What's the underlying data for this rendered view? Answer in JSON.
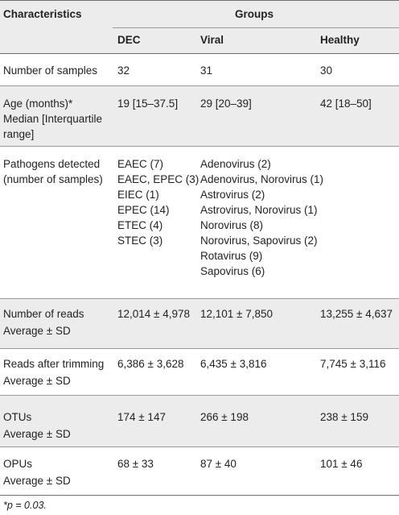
{
  "header": {
    "characteristics": "Characteristics",
    "groups": "Groups",
    "dec": "DEC",
    "viral": "Viral",
    "healthy": "Healthy"
  },
  "rows": {
    "samples": {
      "label": "Number of samples",
      "dec": "32",
      "viral": "31",
      "healthy": "30"
    },
    "age": {
      "label1": "Age (months)*",
      "label2": "Median [Interquartile",
      "label3": "range]",
      "dec": "19 [15–37.5]",
      "viral": "29 [20–39]",
      "healthy": "42 [18–50]"
    },
    "pathogens": {
      "label1": "Pathogens detected",
      "label2": "(number of samples)",
      "dec": [
        "EAEC (7)",
        "EAEC, EPEC (3)",
        "EIEC (1)",
        "EPEC (14)",
        "ETEC (4)",
        "STEC (3)"
      ],
      "viral": [
        "Adenovirus (2)",
        "Adenovirus, Norovirus (1)",
        "Astrovirus (2)",
        "Astrovirus, Norovirus (1)",
        "Norovirus (8)",
        "Norovirus, Sapovirus (2)",
        "Rotavirus (9)",
        "Sapovirus (6)"
      ]
    },
    "reads": {
      "label1": "Number of reads",
      "label2": "Average ± SD",
      "dec": "12,014 ± 4,978",
      "viral": "12,101 ± 7,850",
      "healthy": "13,255 ± 4,637"
    },
    "trimmed": {
      "label1": "Reads after trimming",
      "label2": "Average ± SD",
      "dec": "6,386 ± 3,628",
      "viral": "6,435 ± 3,816",
      "healthy": "7,745 ± 3,116"
    },
    "otus": {
      "label1": "OTUs",
      "label2": "Average ± SD",
      "dec": "174 ± 147",
      "viral": "266 ± 198",
      "healthy": "238 ± 159"
    },
    "opus": {
      "label1": "OPUs",
      "label2": "Average ± SD",
      "dec": "68 ± 33",
      "viral": "87 ± 40",
      "healthy": "101 ± 46"
    }
  },
  "footnote": "*p = 0.03."
}
